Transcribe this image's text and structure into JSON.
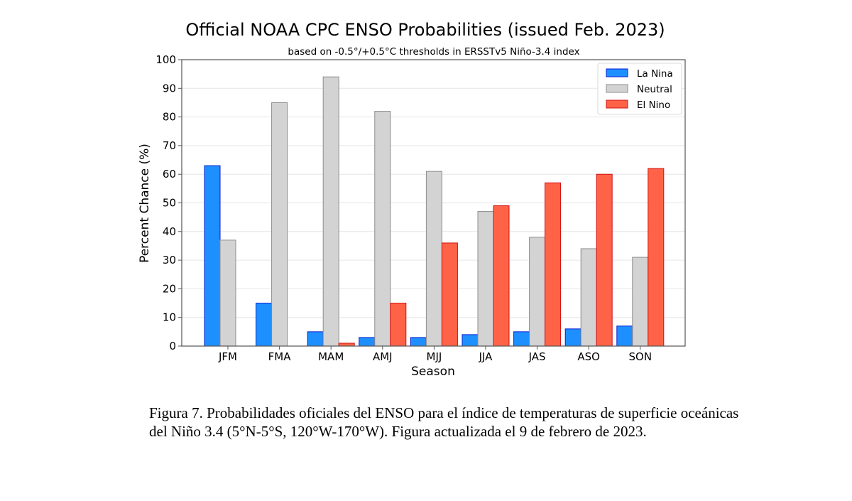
{
  "chart_data": {
    "type": "bar",
    "title": "Official NOAA CPC ENSO Probabilities (issued Feb. 2023)",
    "subtitle": "based on -0.5°/+0.5°C thresholds in ERSSTv5 Niño-3.4 index",
    "xlabel": "Season",
    "ylabel": "Percent Chance (%)",
    "ylim": [
      0,
      100
    ],
    "yticks": [
      0,
      10,
      20,
      30,
      40,
      50,
      60,
      70,
      80,
      90,
      100
    ],
    "grid": "horizontal",
    "legend_position": "top-right",
    "categories": [
      "JFM",
      "FMA",
      "MAM",
      "AMJ",
      "MJJ",
      "JJA",
      "JAS",
      "ASO",
      "SON"
    ],
    "series": [
      {
        "name": "La Nina",
        "color": "#1e8fff",
        "edge": "#0a1fd0",
        "values": [
          63,
          15,
          5,
          3,
          3,
          4,
          5,
          6,
          7
        ]
      },
      {
        "name": "Neutral",
        "color": "#d3d3d3",
        "edge": "#8c8c8c",
        "values": [
          37,
          85,
          94,
          82,
          61,
          47,
          38,
          34,
          31
        ]
      },
      {
        "name": "El Nino",
        "color": "#ff6347",
        "edge": "#d01010",
        "values": [
          0,
          0,
          1,
          15,
          36,
          49,
          57,
          60,
          62
        ]
      }
    ]
  },
  "caption": "Figura 7. Probabilidades oficiales del ENSO para el índice de temperaturas de superficie oceánicas del Niño 3.4 (5°N-5°S, 120°W-170°W). Figura actualizada el 9 de febrero de 2023."
}
